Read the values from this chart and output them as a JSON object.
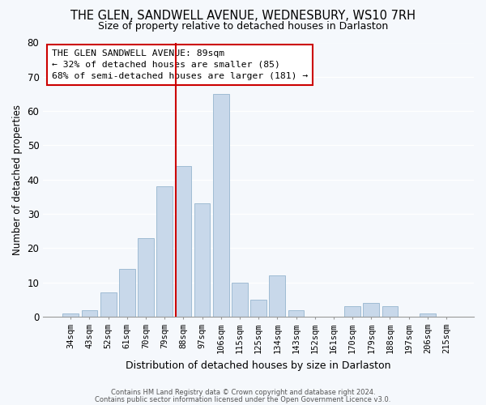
{
  "title": "THE GLEN, SANDWELL AVENUE, WEDNESBURY, WS10 7RH",
  "subtitle": "Size of property relative to detached houses in Darlaston",
  "xlabel": "Distribution of detached houses by size in Darlaston",
  "ylabel": "Number of detached properties",
  "bar_color": "#c8d8ea",
  "bar_edge_color": "#a0bcd4",
  "background_color": "#f5f8fc",
  "grid_color": "#ffffff",
  "categories": [
    "34sqm",
    "43sqm",
    "52sqm",
    "61sqm",
    "70sqm",
    "79sqm",
    "88sqm",
    "97sqm",
    "106sqm",
    "115sqm",
    "125sqm",
    "134sqm",
    "143sqm",
    "152sqm",
    "161sqm",
    "170sqm",
    "179sqm",
    "188sqm",
    "197sqm",
    "206sqm",
    "215sqm"
  ],
  "values": [
    1,
    2,
    7,
    14,
    23,
    38,
    44,
    33,
    65,
    10,
    5,
    12,
    2,
    0,
    0,
    3,
    4,
    3,
    0,
    1,
    0
  ],
  "ylim": [
    0,
    80
  ],
  "yticks": [
    0,
    10,
    20,
    30,
    40,
    50,
    60,
    70,
    80
  ],
  "vline_index": 6,
  "vline_color": "#cc0000",
  "annotation_text": "THE GLEN SANDWELL AVENUE: 89sqm\n← 32% of detached houses are smaller (85)\n68% of semi-detached houses are larger (181) →",
  "annotation_box_color": "#ffffff",
  "annotation_box_edge": "#cc0000",
  "footer1": "Contains HM Land Registry data © Crown copyright and database right 2024.",
  "footer2": "Contains public sector information licensed under the Open Government Licence v3.0."
}
